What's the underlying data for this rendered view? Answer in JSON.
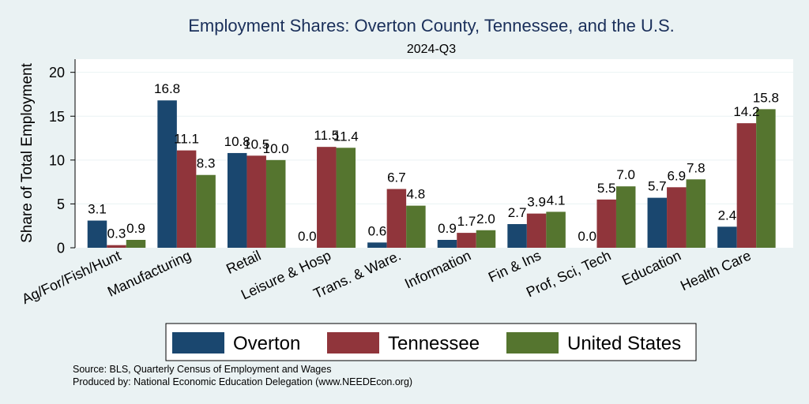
{
  "chart_data": {
    "type": "bar",
    "title": "Employment Shares: Overton County, Tennessee, and the U.S.",
    "subtitle": "2024-Q3",
    "ylabel": "Share of Total Employment",
    "xlabel": "",
    "ylim": [
      0,
      21.5
    ],
    "yticks": [
      0,
      5,
      10,
      15,
      20
    ],
    "grid": true,
    "legend_position": "bottom",
    "categories": [
      "Ag/For/Fish/Hunt",
      "Manufacturing",
      "Retail",
      "Leisure & Hosp",
      "Trans. & Ware.",
      "Information",
      "Fin & Ins",
      "Prof, Sci, Tech",
      "Education",
      "Health Care"
    ],
    "series": [
      {
        "name": "Overton",
        "color": "#1a476f",
        "values": [
          3.1,
          16.8,
          10.8,
          0.0,
          0.6,
          0.9,
          2.7,
          0.0,
          5.7,
          2.4
        ],
        "labels": [
          "3.1",
          "16.8",
          "10.8",
          "0.0",
          "0.6",
          "0.9",
          "2.7",
          "0.0",
          "5.7",
          "2.4"
        ]
      },
      {
        "name": "Tennessee",
        "color": "#90353b",
        "values": [
          0.3,
          11.1,
          10.5,
          11.5,
          6.7,
          1.7,
          3.9,
          5.5,
          6.9,
          14.2
        ],
        "labels": [
          "0.3",
          "11.1",
          "10.5",
          "11.5",
          "6.7",
          "1.7",
          "3.9",
          "5.5",
          "6.9",
          "14.2"
        ]
      },
      {
        "name": "United States",
        "color": "#55752f",
        "values": [
          0.9,
          8.3,
          10.0,
          11.4,
          4.8,
          2.0,
          4.1,
          7.0,
          7.8,
          15.8
        ],
        "labels": [
          "0.9",
          "8.3",
          "10.0",
          "11.4",
          "4.8",
          "2.0",
          "4.1",
          "7.0",
          "7.8",
          "15.8"
        ]
      }
    ],
    "notes": [
      "Source: BLS, Quarterly Census of Employment and Wages",
      "Produced by: National Economic Education Delegation (www.NEEDEcon.org)"
    ]
  }
}
